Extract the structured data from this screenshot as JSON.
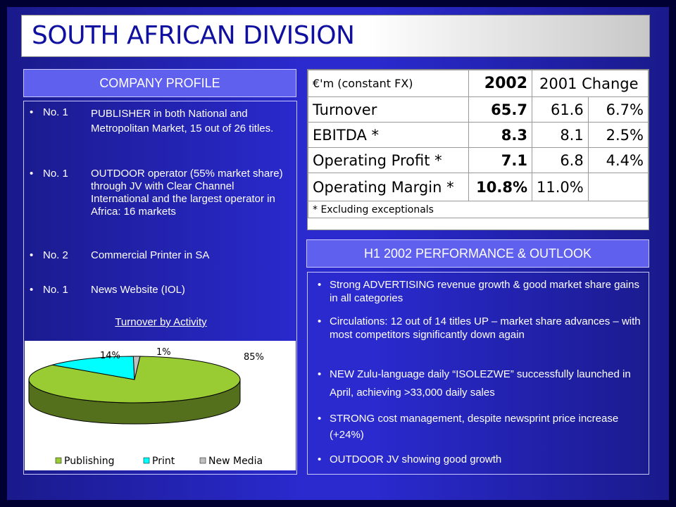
{
  "title": "SOUTH AFRICAN DIVISION",
  "profile": {
    "header": "COMPANY PROFILE",
    "items": [
      {
        "rank": "No. 1",
        "text": "PUBLISHER in both National and Metropolitan Market, 15 out of 26 titles."
      },
      {
        "rank": "No. 1",
        "text": "OUTDOOR operator (55% market share) through JV with Clear Channel International  and the largest operator in Africa: 16 markets"
      },
      {
        "rank": "No. 2",
        "text": "Commercial Printer in SA"
      },
      {
        "rank": "No. 1",
        "text": "News Website (IOL)"
      }
    ]
  },
  "financials": {
    "unit_label": "€'m (constant FX)",
    "col_2002": "2002",
    "col_2001_change": "2001 Change",
    "rows": [
      {
        "label": "Turnover",
        "v2002": "65.7",
        "v2001": "61.6",
        "change": "6.7%"
      },
      {
        "label": "EBITDA *",
        "v2002": "8.3",
        "v2001": "8.1",
        "change": "2.5%"
      },
      {
        "label": "Operating Profit *",
        "v2002": "7.1",
        "v2001": "6.8",
        "change": "4.4%"
      },
      {
        "label": "Operating Margin *",
        "v2002": "10.8%",
        "v2001": "11.0%",
        "change": ""
      }
    ],
    "footnote": "* Excluding exceptionals"
  },
  "outlook": {
    "header": "H1 2002 PERFORMANCE & OUTLOOK",
    "items": [
      "Strong ADVERTISING revenue growth & good market share gains in all categories",
      "Circulations: 12 out of 14 titles UP – market share advances – with most competitors significantly down again",
      "NEW Zulu-language daily “ISOLEZWE” successfully launched in April, achieving >33,000 daily sales",
      "STRONG cost management, despite newsprint price increase (+24%)",
      "OUTDOOR JV showing good growth"
    ]
  },
  "chart_data": {
    "type": "pie",
    "title": "Turnover by Activity",
    "categories": [
      "Publishing",
      "Print",
      "New Media"
    ],
    "values": [
      85,
      14,
      1
    ],
    "labels": [
      "85%",
      "14%",
      "1%"
    ],
    "colors": [
      "#99cc33",
      "#00ffff",
      "#c0c0c0"
    ],
    "legend_position": "bottom"
  }
}
